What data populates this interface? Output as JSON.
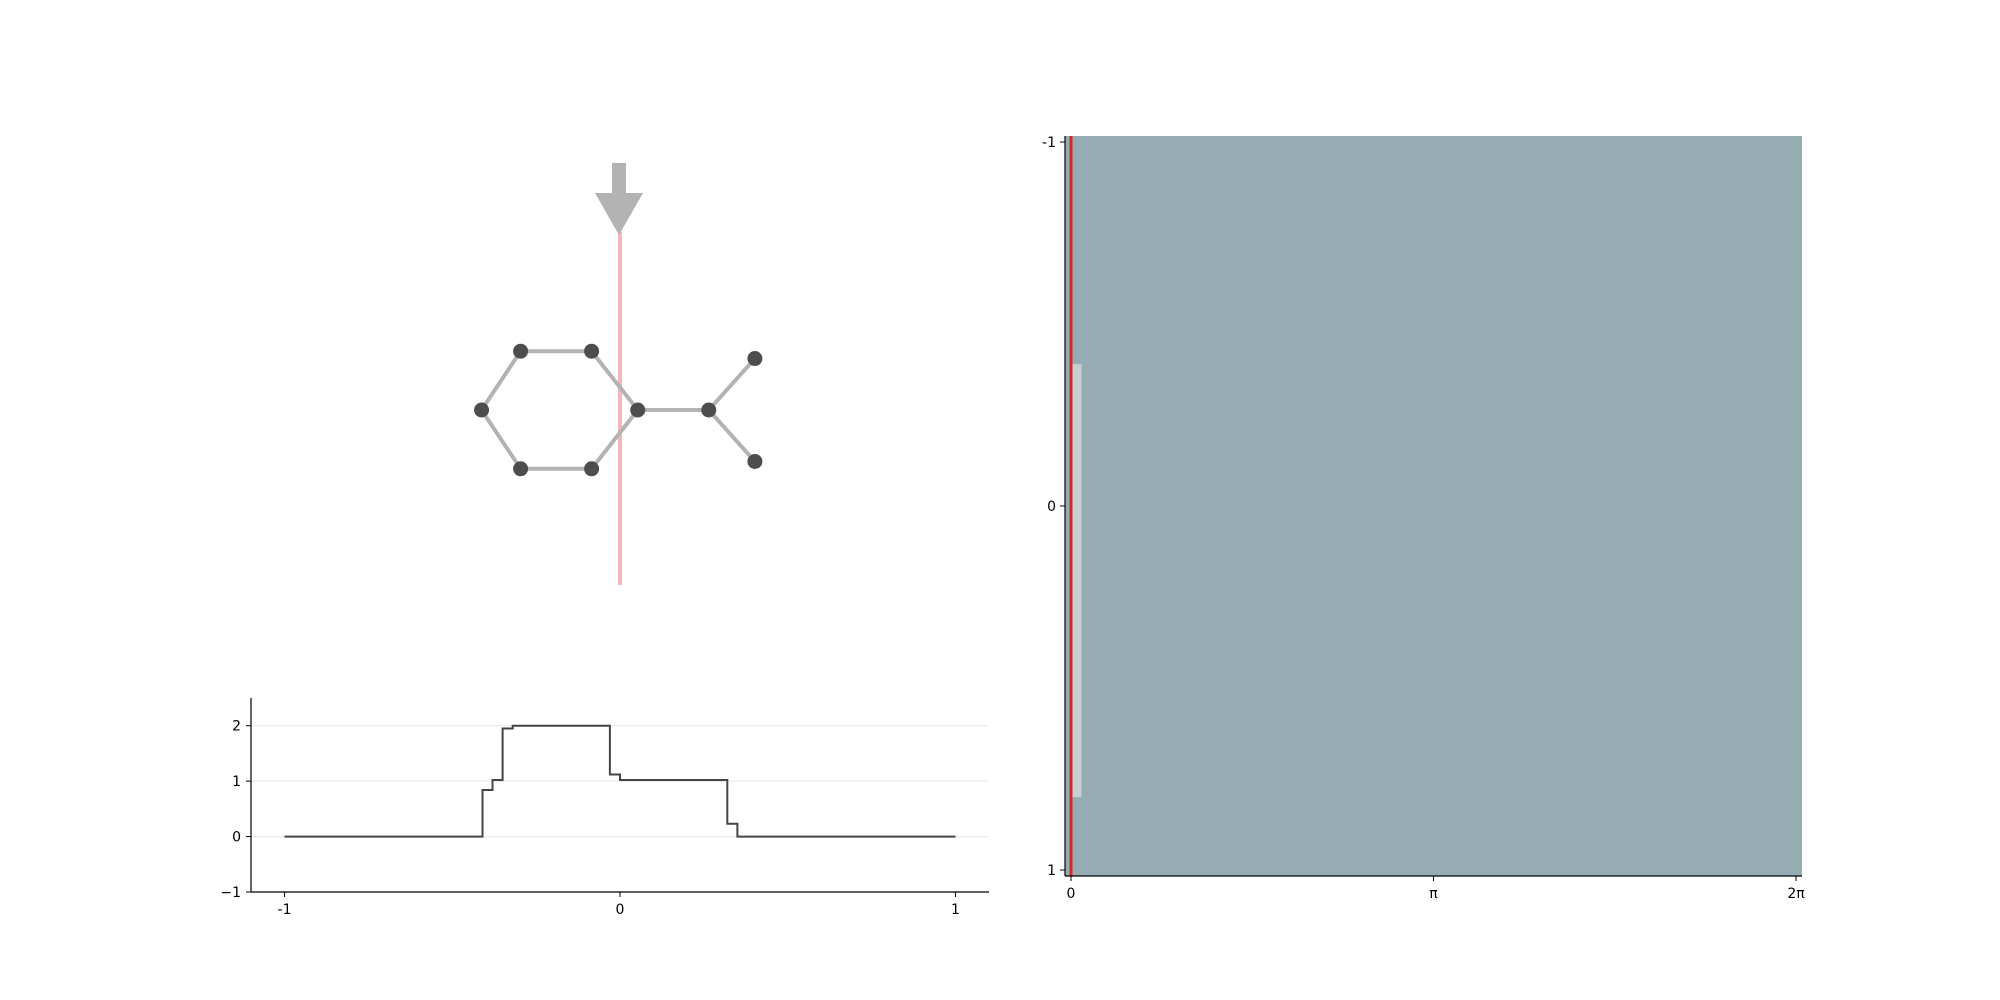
{
  "colors": {
    "background": "#ffffff",
    "bond": "#b3b3b3",
    "atom": "#4d4d4d",
    "arrow": "#b3b3b3",
    "scanline": "#f4b6b6",
    "profile_line": "#444444",
    "grid": "#e6e6e6",
    "heatmap_fill": "#94acb2",
    "heatmap_marker": "#d62728",
    "heatmap_band": "#e8e8e8"
  },
  "chart_data": [
    {
      "type": "line",
      "drawstyle": "steps",
      "xticks": [
        "-1",
        "0",
        "1"
      ],
      "yticks": [
        "2",
        "1",
        "0",
        "−1"
      ],
      "xlim": [
        -1.1,
        1.1
      ],
      "ylim": [
        -1,
        2.5
      ],
      "grid": "horizontal",
      "series": [
        {
          "points": [
            [
              -1.0,
              0.0
            ],
            [
              -0.41,
              0.0
            ],
            [
              -0.41,
              0.84
            ],
            [
              -0.38,
              0.84
            ],
            [
              -0.38,
              1.02
            ],
            [
              -0.35,
              1.02
            ],
            [
              -0.35,
              1.95
            ],
            [
              -0.32,
              1.95
            ],
            [
              -0.32,
              2.0
            ],
            [
              -0.03,
              2.0
            ],
            [
              -0.03,
              1.12
            ],
            [
              0.0,
              1.12
            ],
            [
              0.0,
              1.02
            ],
            [
              0.32,
              1.02
            ],
            [
              0.32,
              0.23
            ],
            [
              0.35,
              0.23
            ],
            [
              0.35,
              0.0
            ],
            [
              1.0,
              0.0
            ]
          ]
        }
      ]
    },
    {
      "type": "heatmap",
      "xticks": [
        "0",
        "π",
        "2π"
      ],
      "yticks": [
        "-1",
        "0",
        "1"
      ],
      "xlim": [
        0,
        6.283
      ],
      "ylim": [
        -1,
        1
      ],
      "marker_x": 0.0,
      "band": {
        "x": 0.03,
        "y_range": [
          -0.39,
          0.8
        ]
      }
    }
  ],
  "molecule": {
    "atoms": [
      [
        -0.28,
        -0.16
      ],
      [
        -0.08,
        -0.16
      ],
      [
        0.05,
        0.0
      ],
      [
        -0.08,
        0.16
      ],
      [
        -0.28,
        0.16
      ],
      [
        -0.39,
        0.0
      ],
      [
        0.25,
        0.0
      ],
      [
        0.38,
        -0.14
      ],
      [
        0.38,
        0.14
      ]
    ],
    "bonds": [
      [
        0,
        1
      ],
      [
        1,
        2
      ],
      [
        2,
        3
      ],
      [
        3,
        4
      ],
      [
        4,
        5
      ],
      [
        5,
        0
      ],
      [
        2,
        6
      ],
      [
        6,
        7
      ],
      [
        6,
        8
      ]
    ],
    "scan_x": 0.0
  }
}
